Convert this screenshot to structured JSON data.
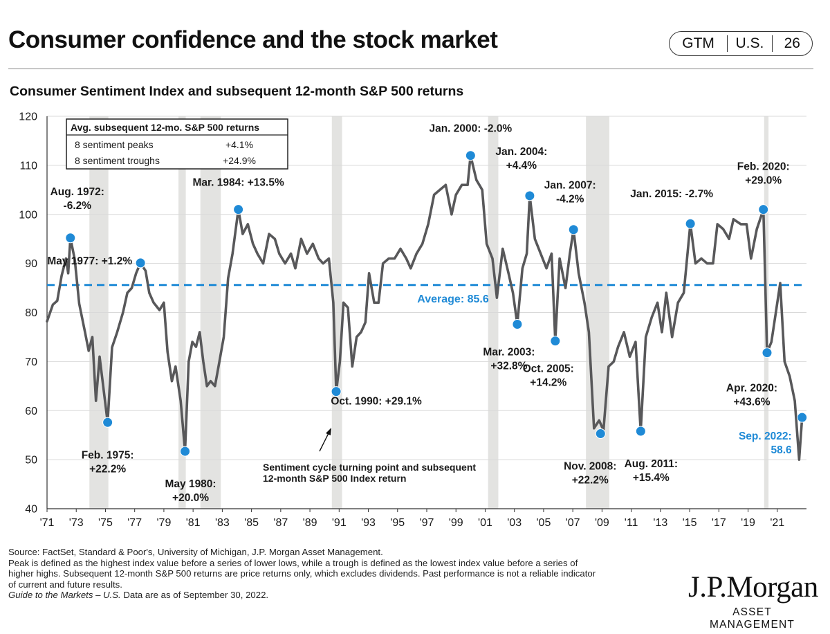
{
  "header": {
    "title": "Consumer confidence and the stock market",
    "badge": [
      "GTM",
      "U.S.",
      "26"
    ]
  },
  "chart_data": {
    "type": "line",
    "title": "Consumer Sentiment Index and subsequent 12-month S&P 500 returns",
    "xlabel": "",
    "ylabel": "",
    "ylim": [
      40,
      120
    ],
    "xlim": [
      1971.0,
      2023.0
    ],
    "yticks": [
      40,
      50,
      60,
      70,
      80,
      90,
      100,
      110,
      120
    ],
    "xticks": [
      "'71",
      "'73",
      "'75",
      "'77",
      "'79",
      "'81",
      "'83",
      "'85",
      "'87",
      "'89",
      "'91",
      "'93",
      "'95",
      "'97",
      "'99",
      "'01",
      "'03",
      "'05",
      "'07",
      "'09",
      "'11",
      "'13",
      "'15",
      "'17",
      "'19",
      "'21"
    ],
    "grid": true,
    "colors": {
      "line": "#58585a",
      "average": "#1f8ad6",
      "marker": "#1f8ad6",
      "recession": "#e3e3e1",
      "label": "#1a1a1a",
      "latest": "#1f8ad6"
    },
    "recessions": [
      [
        1973.9,
        1975.2
      ],
      [
        1980.0,
        1980.5
      ],
      [
        1981.5,
        1982.9
      ],
      [
        1990.5,
        1991.2
      ],
      [
        2001.2,
        2001.9
      ],
      [
        2007.9,
        2009.5
      ],
      [
        2020.1,
        2020.4
      ]
    ],
    "average": {
      "value": 85.6,
      "label": "Average: 85.6"
    },
    "series": [
      {
        "values": [
          [
            1971.0,
            78.2
          ],
          [
            1971.4,
            81.6
          ],
          [
            1971.7,
            82.4
          ],
          [
            1972.0,
            87.5
          ],
          [
            1972.3,
            91.0
          ],
          [
            1972.45,
            88.0
          ],
          [
            1972.6,
            95.2
          ],
          [
            1972.9,
            90.8
          ],
          [
            1973.2,
            81.8
          ],
          [
            1973.6,
            76.0
          ],
          [
            1973.85,
            72.2
          ],
          [
            1974.1,
            75.0
          ],
          [
            1974.35,
            62.0
          ],
          [
            1974.6,
            71.0
          ],
          [
            1974.9,
            63.6
          ],
          [
            1975.15,
            57.6
          ],
          [
            1975.45,
            72.9
          ],
          [
            1975.8,
            76.0
          ],
          [
            1976.2,
            80.0
          ],
          [
            1976.5,
            84.0
          ],
          [
            1976.8,
            85.0
          ],
          [
            1977.1,
            88.0
          ],
          [
            1977.4,
            90.1
          ],
          [
            1977.75,
            88.5
          ],
          [
            1978.0,
            84.0
          ],
          [
            1978.3,
            82.0
          ],
          [
            1978.7,
            80.5
          ],
          [
            1979.0,
            82.0
          ],
          [
            1979.25,
            72.0
          ],
          [
            1979.55,
            66.0
          ],
          [
            1979.8,
            69.0
          ],
          [
            1980.15,
            62.0
          ],
          [
            1980.45,
            51.7
          ],
          [
            1980.7,
            70.0
          ],
          [
            1980.95,
            74.0
          ],
          [
            1981.2,
            73.0
          ],
          [
            1981.45,
            76.0
          ],
          [
            1981.7,
            70.0
          ],
          [
            1981.95,
            65.0
          ],
          [
            1982.2,
            66.0
          ],
          [
            1982.5,
            65.0
          ],
          [
            1982.8,
            70.0
          ],
          [
            1983.1,
            75.0
          ],
          [
            1983.4,
            87.0
          ],
          [
            1983.7,
            92.0
          ],
          [
            1984.1,
            101.0
          ],
          [
            1984.4,
            96.0
          ],
          [
            1984.75,
            98.0
          ],
          [
            1985.1,
            94.0
          ],
          [
            1985.4,
            92.0
          ],
          [
            1985.8,
            90.0
          ],
          [
            1986.2,
            96.0
          ],
          [
            1986.6,
            95.0
          ],
          [
            1986.9,
            92.0
          ],
          [
            1987.3,
            90.0
          ],
          [
            1987.7,
            92.0
          ],
          [
            1988.0,
            89.0
          ],
          [
            1988.4,
            95.0
          ],
          [
            1988.8,
            92.0
          ],
          [
            1989.2,
            94.0
          ],
          [
            1989.6,
            91.0
          ],
          [
            1989.9,
            90.0
          ],
          [
            1990.3,
            91.0
          ],
          [
            1990.6,
            82.0
          ],
          [
            1990.8,
            63.9
          ],
          [
            1991.05,
            70.0
          ],
          [
            1991.3,
            82.0
          ],
          [
            1991.6,
            81.0
          ],
          [
            1991.9,
            69.0
          ],
          [
            1992.2,
            75.0
          ],
          [
            1992.5,
            76.0
          ],
          [
            1992.8,
            78.0
          ],
          [
            1993.05,
            88.0
          ],
          [
            1993.4,
            82.0
          ],
          [
            1993.7,
            82.0
          ],
          [
            1994.0,
            90.0
          ],
          [
            1994.4,
            91.0
          ],
          [
            1994.8,
            91.0
          ],
          [
            1995.2,
            93.0
          ],
          [
            1995.6,
            91.0
          ],
          [
            1995.9,
            89.0
          ],
          [
            1996.3,
            92.0
          ],
          [
            1996.7,
            94.0
          ],
          [
            1997.1,
            98.0
          ],
          [
            1997.5,
            104.0
          ],
          [
            1997.9,
            105.0
          ],
          [
            1998.3,
            106.0
          ],
          [
            1998.7,
            100.0
          ],
          [
            1999.0,
            104.0
          ],
          [
            1999.4,
            106.0
          ],
          [
            1999.8,
            106.0
          ],
          [
            2000.0,
            112.0
          ],
          [
            2000.4,
            107.0
          ],
          [
            2000.8,
            105.0
          ],
          [
            2001.1,
            94.0
          ],
          [
            2001.5,
            91.0
          ],
          [
            2001.8,
            83.0
          ],
          [
            2002.2,
            93.0
          ],
          [
            2002.6,
            88.0
          ],
          [
            2002.9,
            84.0
          ],
          [
            2003.2,
            77.6
          ],
          [
            2003.55,
            89.0
          ],
          [
            2003.85,
            92.0
          ],
          [
            2004.05,
            103.8
          ],
          [
            2004.4,
            95.0
          ],
          [
            2004.8,
            92.0
          ],
          [
            2005.2,
            89.0
          ],
          [
            2005.55,
            92.0
          ],
          [
            2005.8,
            74.2
          ],
          [
            2006.1,
            91.0
          ],
          [
            2006.5,
            85.0
          ],
          [
            2006.8,
            92.0
          ],
          [
            2007.05,
            96.9
          ],
          [
            2007.4,
            88.0
          ],
          [
            2007.8,
            82.0
          ],
          [
            2008.1,
            76.0
          ],
          [
            2008.45,
            56.4
          ],
          [
            2008.8,
            58.0
          ],
          [
            2009.1,
            56.0
          ],
          [
            2009.45,
            69.0
          ],
          [
            2009.8,
            70.0
          ],
          [
            2010.1,
            73.0
          ],
          [
            2010.5,
            76.0
          ],
          [
            2010.9,
            71.0
          ],
          [
            2011.3,
            74.0
          ],
          [
            2011.65,
            55.8
          ],
          [
            2012.0,
            75.0
          ],
          [
            2012.4,
            79.0
          ],
          [
            2012.8,
            82.0
          ],
          [
            2013.1,
            76.0
          ],
          [
            2013.4,
            84.0
          ],
          [
            2013.8,
            75.0
          ],
          [
            2014.2,
            82.0
          ],
          [
            2014.6,
            84.0
          ],
          [
            2015.05,
            98.1
          ],
          [
            2015.4,
            90.0
          ],
          [
            2015.8,
            91.0
          ],
          [
            2016.2,
            90.0
          ],
          [
            2016.6,
            90.0
          ],
          [
            2016.9,
            98.0
          ],
          [
            2017.3,
            97.0
          ],
          [
            2017.7,
            95.0
          ],
          [
            2018.0,
            99.0
          ],
          [
            2018.5,
            98.0
          ],
          [
            2018.9,
            98.0
          ],
          [
            2019.2,
            91.0
          ],
          [
            2019.6,
            97.0
          ],
          [
            2020.05,
            101.0
          ],
          [
            2020.3,
            71.8
          ],
          [
            2020.6,
            74.0
          ],
          [
            2020.9,
            80.0
          ],
          [
            2021.2,
            86.0
          ],
          [
            2021.5,
            70.0
          ],
          [
            2021.85,
            67.0
          ],
          [
            2022.2,
            62.0
          ],
          [
            2022.5,
            50.0
          ],
          [
            2022.7,
            58.6
          ]
        ]
      }
    ],
    "table": {
      "header": "Avg. subsequent 12-mo. S&P 500 returns",
      "rows": [
        {
          "label": "8 sentiment peaks",
          "value": "+4.1%"
        },
        {
          "label": "8 sentiment troughs",
          "value": "+24.9%"
        }
      ]
    },
    "annotations": [
      {
        "x": 1972.6,
        "y": 95.2,
        "label": [
          "Aug. 1972:",
          "-6.2%"
        ]
      },
      {
        "x": 1975.15,
        "y": 57.6,
        "label": [
          "Feb. 1975:",
          "+22.2%"
        ]
      },
      {
        "x": 1977.4,
        "y": 90.1,
        "label": [
          "May 1977: +1.2%"
        ]
      },
      {
        "x": 1980.45,
        "y": 51.7,
        "label": [
          "May 1980:",
          "+20.0%"
        ]
      },
      {
        "x": 1984.1,
        "y": 101.0,
        "label": [
          "Mar. 1984: +13.5%"
        ]
      },
      {
        "x": 1990.8,
        "y": 63.9,
        "label": [
          "Oct. 1990: +29.1%"
        ]
      },
      {
        "x": 2000.0,
        "y": 112.0,
        "label": [
          "Jan. 2000: -2.0%"
        ]
      },
      {
        "x": 2003.2,
        "y": 77.6,
        "label": [
          "Mar. 2003:",
          "+32.8%"
        ]
      },
      {
        "x": 2004.05,
        "y": 103.8,
        "label": [
          "Jan. 2004:",
          "+4.4%"
        ]
      },
      {
        "x": 2005.8,
        "y": 74.2,
        "label": [
          "Oct. 2005:",
          "+14.2%"
        ]
      },
      {
        "x": 2007.05,
        "y": 96.9,
        "label": [
          "Jan. 2007:",
          "-4.2%"
        ]
      },
      {
        "x": 2008.9,
        "y": 55.3,
        "label": [
          "Nov. 2008:",
          "+22.2%"
        ]
      },
      {
        "x": 2011.65,
        "y": 55.8,
        "label": [
          "Aug. 2011:",
          "+15.4%"
        ]
      },
      {
        "x": 2015.05,
        "y": 98.1,
        "label": [
          "Jan. 2015: -2.7%"
        ]
      },
      {
        "x": 2020.05,
        "y": 101.0,
        "label": [
          "Feb. 2020:",
          "+29.0%"
        ]
      },
      {
        "x": 2020.3,
        "y": 71.8,
        "label": [
          "Apr. 2020:",
          "+43.6%"
        ]
      },
      {
        "x": 2022.7,
        "y": 58.6,
        "label": [
          "Sep. 2022:",
          "58.6"
        ],
        "latest": true
      }
    ],
    "note": [
      "Sentiment cycle turning point and subsequent",
      "12-month S&P 500 Index return"
    ]
  },
  "footnotes": [
    "Source: FactSet, Standard & Poor's, University of Michigan, J.P. Morgan Asset Management.",
    "Peak is defined as the highest index value before a series of lower lows, while a trough is defined as the lowest index value before a series of",
    "higher highs. Subsequent 12-month S&P 500 returns are price returns only, which excludes dividends. Past performance is not a reliable indicator",
    "of current and future results."
  ],
  "footnote_guide": "Guide to the Markets – U.S.",
  "footnote_asof": " Data are as of September 30, 2022.",
  "logo": {
    "name": "J.P.Morgan",
    "sub": "ASSET MANAGEMENT"
  }
}
